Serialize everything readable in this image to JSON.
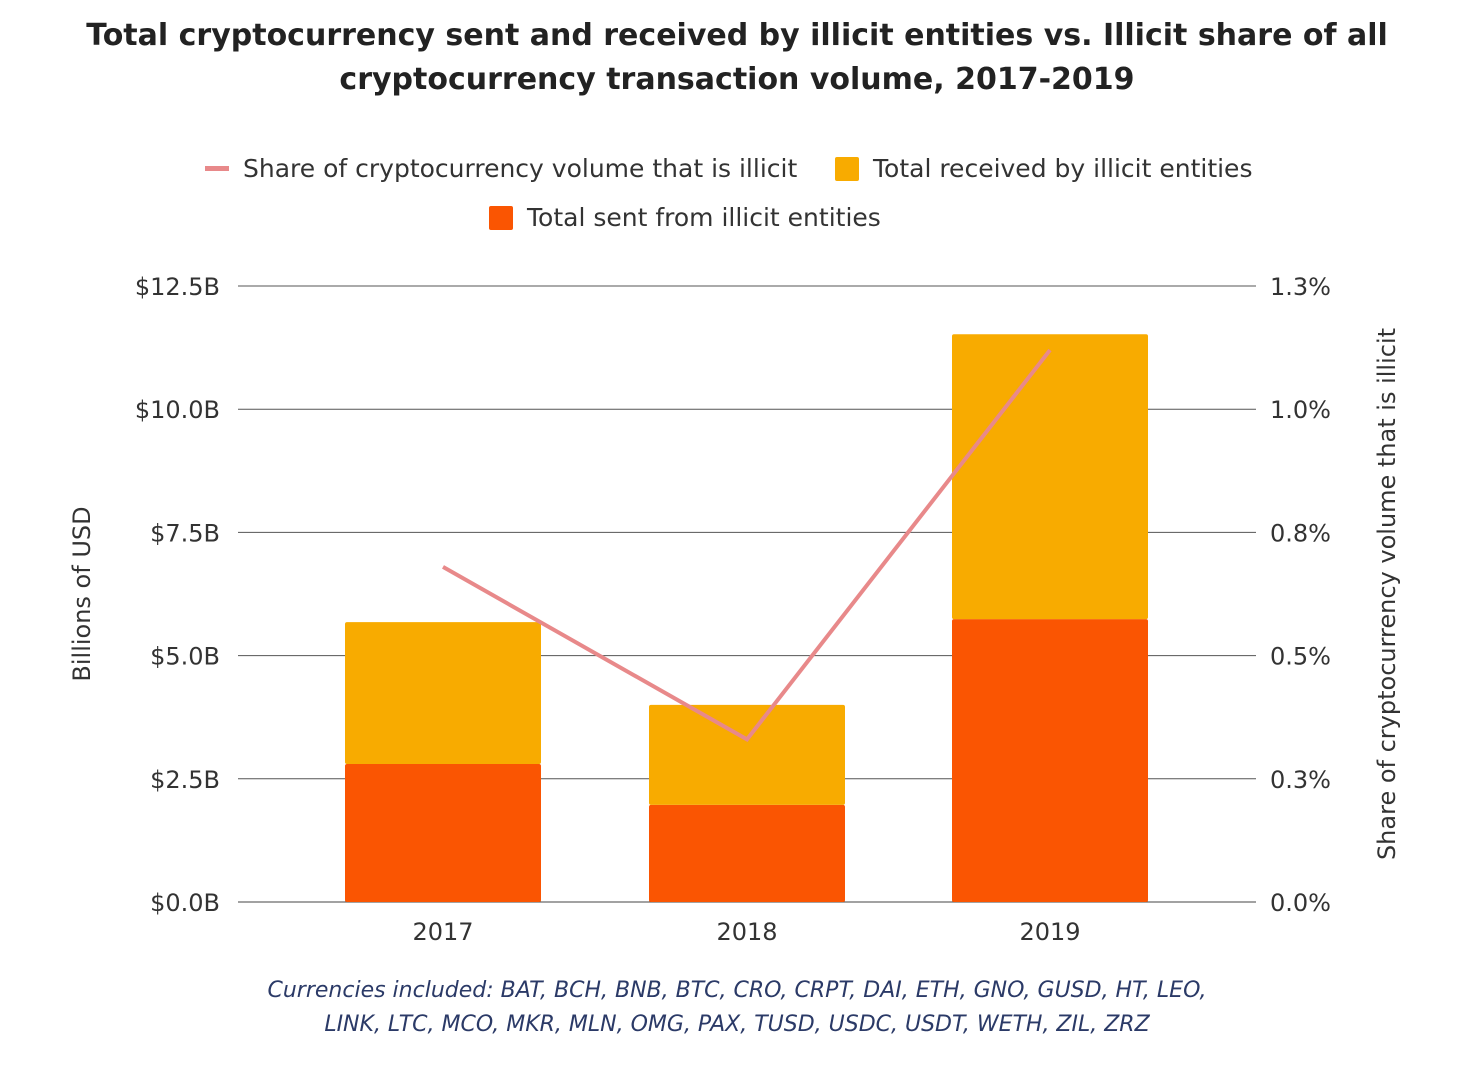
{
  "chart_data": {
    "type": "bar",
    "stacked": true,
    "title_line1": "Total cryptocurrency sent and received by illicit entities vs. Illicit share of all",
    "title_line2": "cryptocurrency transaction volume, 2017-2019",
    "categories": [
      "2017",
      "2018",
      "2019"
    ],
    "series": [
      {
        "name": "Total sent from illicit entities",
        "type": "bar",
        "axis": "left",
        "color": "#fa5502",
        "values": [
          2.8,
          1.97,
          5.74
        ]
      },
      {
        "name": "Total received by illicit entities",
        "type": "bar",
        "axis": "left",
        "color": "#f8ab00",
        "values": [
          2.88,
          2.03,
          5.78
        ]
      },
      {
        "name": "Share of cryptocurrency volume that is illicit",
        "type": "line",
        "axis": "right",
        "color": "#e8898a",
        "values": [
          0.68,
          0.33,
          1.12
        ]
      }
    ],
    "ylabel": "Billions of USD",
    "y2label": "Share of cryptocurrency volume that is illicit",
    "ylim": [
      0,
      12.5
    ],
    "y2lim": [
      0,
      1.25
    ],
    "yticks": [
      "$0.0B",
      "$2.5B",
      "$5.0B",
      "$7.5B",
      "$10.0B",
      "$12.5B"
    ],
    "y2ticks": [
      "0.0%",
      "0.3%",
      "0.5%",
      "0.8%",
      "1.0%",
      "1.3%"
    ],
    "grid": true,
    "legend_position": "top",
    "footnote_line1": "Currencies included: BAT, BCH, BNB, BTC, CRO, CRPT, DAI, ETH, GNO, GUSD, HT, LEO,",
    "footnote_line2": "LINK, LTC, MCO, MKR, MLN, OMG, PAX, TUSD, USDC, USDT, WETH, ZIL, ZRZ"
  }
}
